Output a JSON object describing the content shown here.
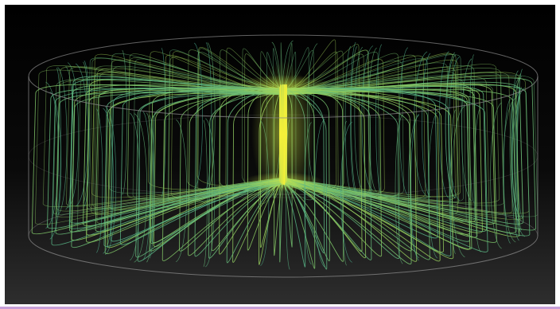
{
  "scene": {
    "subject": "streamlines-in-cylinder",
    "colors": {
      "background_top": "#000000",
      "background_bottom": "#2e2e2e",
      "cylinder_outline": "#8a8a8a",
      "streamline_cool": "#3aa39a",
      "streamline_mid": "#7bc46a",
      "streamline_warm": "#b9d84a",
      "core_hot": "#f4f03a",
      "frame": "#ffffff",
      "bottom_accent": "#c8a0d8"
    }
  }
}
